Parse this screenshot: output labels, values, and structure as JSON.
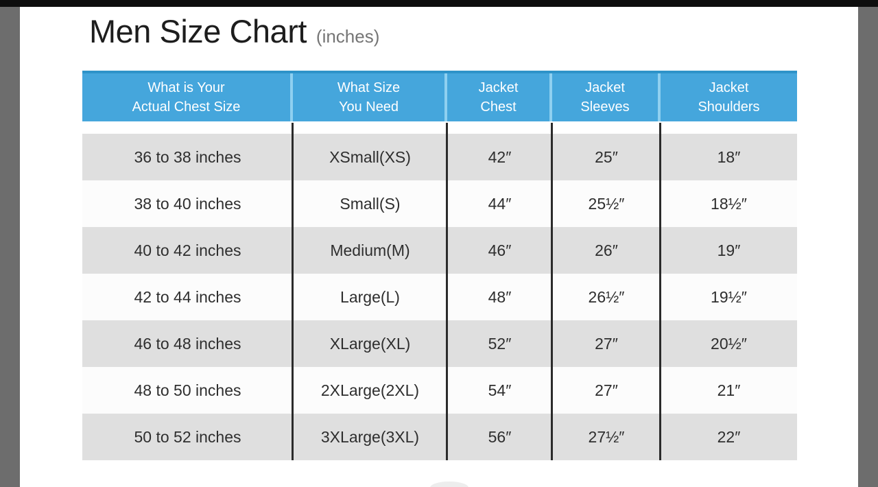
{
  "title": {
    "main": "Men Size Chart",
    "suffix": "(inches)"
  },
  "table": {
    "headers": [
      {
        "line1": "What is Your",
        "line2": "Actual Chest Size"
      },
      {
        "line1": "What Size",
        "line2": "You Need"
      },
      {
        "line1": "Jacket",
        "line2": "Chest"
      },
      {
        "line1": "Jacket",
        "line2": "Sleeves"
      },
      {
        "line1": "Jacket",
        "line2": "Shoulders"
      }
    ],
    "rows": [
      [
        "36 to 38 inches",
        "XSmall(XS)",
        "42″",
        "25″",
        "18″"
      ],
      [
        "38 to 40 inches",
        "Small(S)",
        "44″",
        "25½″",
        "18½″"
      ],
      [
        "40 to 42 inches",
        "Medium(M)",
        "46″",
        "26″",
        "19″"
      ],
      [
        "42 to 44 inches",
        "Large(L)",
        "48″",
        "26½″",
        "19½″"
      ],
      [
        "46 to 48 inches",
        "XLarge(XL)",
        "52″",
        "27″",
        "20½″"
      ],
      [
        "48 to 50 inches",
        "2XLarge(2XL)",
        "54″",
        "27″",
        "21″"
      ],
      [
        "50 to 52 inches",
        "3XLarge(3XL)",
        "56″",
        "27½″",
        "22″"
      ]
    ],
    "colors": {
      "header_bg": "#45a6dc",
      "header_top_edge": "#2e93c9",
      "header_divider": "#8fd0f0",
      "row_gray_bg": "#dfdfdf",
      "row_white_bg": "#fcfcfc",
      "column_divider": "#2b2b2b",
      "side_strip": "#6d6d6d",
      "top_bar": "#0e0e0e"
    }
  }
}
